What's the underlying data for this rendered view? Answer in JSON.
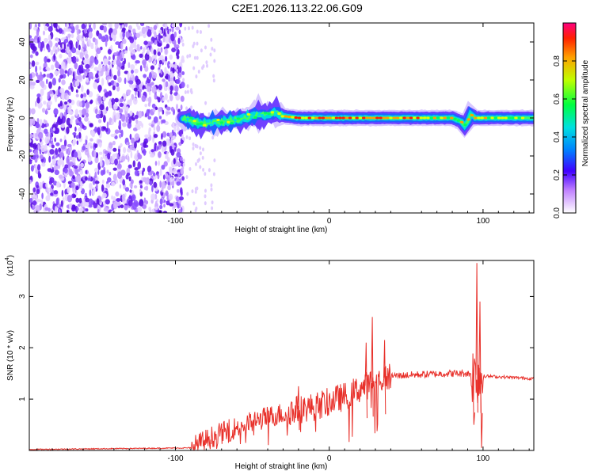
{
  "title": "C2E1.2026.113.22.06.G09",
  "chart_data": [
    {
      "type": "heatmap",
      "xlabel": "Height of straight line (km)",
      "ylabel": "Frequency (Hz)",
      "xlim": [
        -195,
        133
      ],
      "ylim": [
        -50,
        50
      ],
      "xticks": [
        -100,
        0,
        100
      ],
      "yticks": [
        -40,
        -20,
        0,
        20,
        40
      ],
      "noise_region": {
        "x_start": -195,
        "x_end": -95
      },
      "signal_track": {
        "x": [
          -95,
          -88,
          -80,
          -70,
          -60,
          -50,
          -40,
          -35,
          -30,
          -20,
          -10,
          0,
          20,
          40,
          60,
          80,
          86,
          88,
          90,
          92,
          95,
          100,
          133
        ],
        "freq": [
          0,
          -2,
          -3,
          -2,
          -1,
          1,
          2,
          3,
          1,
          0,
          0,
          0,
          0,
          0,
          0,
          0,
          -2,
          -4,
          -2,
          2,
          0,
          0,
          0
        ]
      },
      "colorbar": {
        "label": "Normalized spectral amplitude",
        "range": [
          0,
          1
        ],
        "ticks": [
          "0.0",
          "0.2",
          "0.4",
          "0.6",
          "0.8"
        ]
      }
    },
    {
      "type": "line",
      "xlabel": "Height of straight line (km)",
      "ylabel": "SNR (10 * v/v)",
      "scale_label": "(x10",
      "scale_exp": "4",
      "xlim": [
        -195,
        133
      ],
      "ylim": [
        0,
        3.7
      ],
      "xticks": [
        -100,
        0,
        100
      ],
      "yticks": [
        1,
        2,
        3
      ],
      "color": "#e8302a",
      "envelope": {
        "x": [
          -195,
          -90,
          -85,
          -75,
          -60,
          -50,
          -40,
          -20,
          -10,
          0,
          10,
          20,
          30,
          40,
          60,
          80,
          90,
          100,
          133
        ],
        "y": [
          0.02,
          0.05,
          0.12,
          0.28,
          0.45,
          0.55,
          0.65,
          0.8,
          0.85,
          0.95,
          1.05,
          1.2,
          1.35,
          1.45,
          1.48,
          1.5,
          1.5,
          1.45,
          1.4
        ]
      },
      "spikes": [
        {
          "x": 28,
          "y": 2.6
        },
        {
          "x": 24,
          "y": 2.1
        },
        {
          "x": 36,
          "y": 2.15
        },
        {
          "x": -20,
          "y": 1.25
        },
        {
          "x": 96,
          "y": 3.65
        },
        {
          "x": 98,
          "y": 2.9
        },
        {
          "x": 94,
          "y": 0.5
        },
        {
          "x": 99,
          "y": 0.05
        }
      ]
    }
  ]
}
